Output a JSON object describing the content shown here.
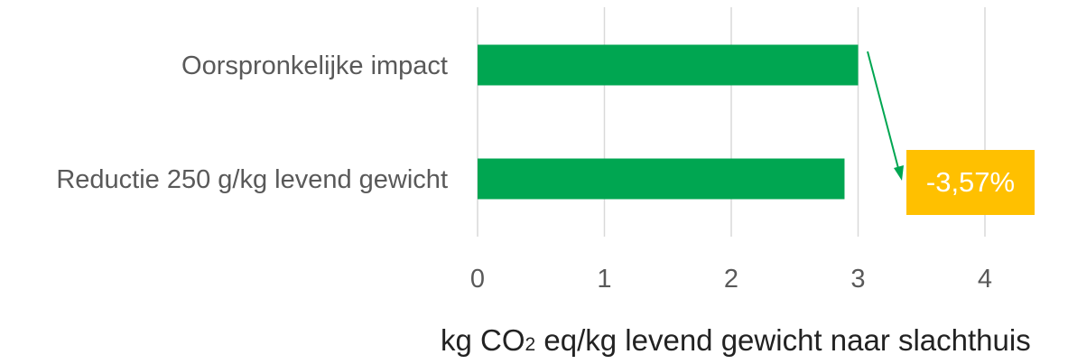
{
  "chart_data": {
    "type": "bar",
    "orientation": "horizontal",
    "categories": [
      "Oorspronkelijke impact",
      "Reductie 250 g/kg levend gewicht"
    ],
    "values": [
      3.0,
      2.893
    ],
    "xlim": [
      0,
      4
    ],
    "xticks": [
      0,
      1,
      2,
      3,
      4
    ],
    "xlabel": {
      "before": "kg CO",
      "subscript": "2",
      "after": " eq/kg levend gewicht naar slachthuis"
    },
    "grid": "vertical",
    "bar_color": "#00a651",
    "annotation": {
      "text": "-3,57%",
      "background": "#ffc000",
      "arrow_color": "#00a651"
    }
  }
}
